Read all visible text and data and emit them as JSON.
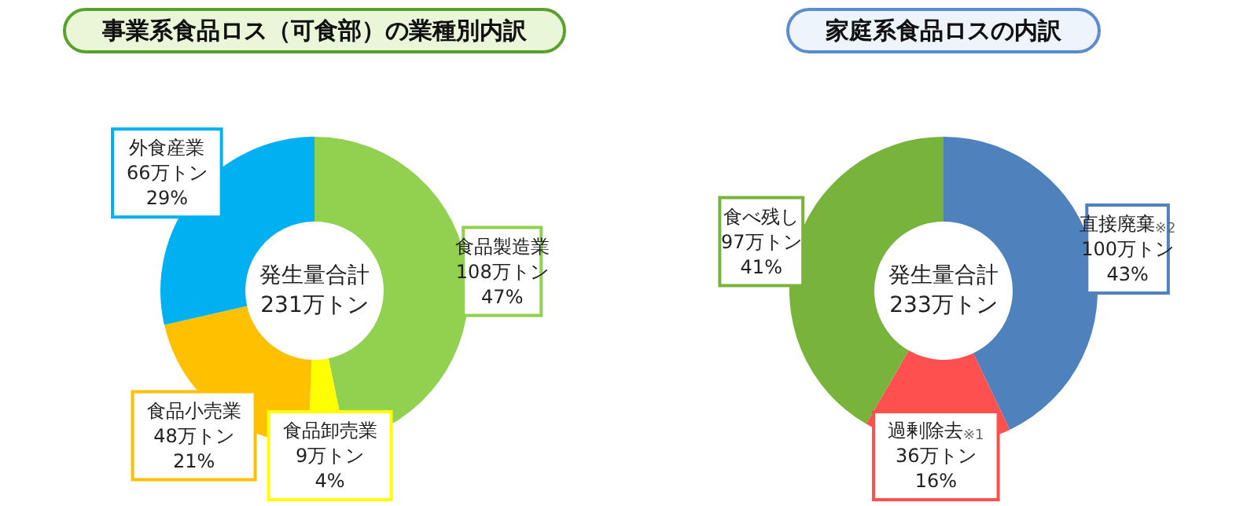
{
  "chart_data": [
    {
      "type": "donut",
      "title": "事業系食品ロス（可食部）の業種別内訳",
      "categories": [
        "食品製造業",
        "食品卸売業",
        "食品小売業",
        "外食産業"
      ],
      "values": [
        108,
        9,
        48,
        66
      ],
      "value_labels": [
        "108万トン\n47%",
        "9万トン\n4%",
        "48万トン\n21%",
        "66万トン\n29%"
      ],
      "colors": [
        "#92d050",
        "#ffff00",
        "#ffc000",
        "#00b0f0"
      ],
      "annotations": [
        "発生量合計",
        "231万トン"
      ],
      "legend": false
    },
    {
      "type": "donut",
      "title": "家庭系食品ロスの内訳",
      "categories": [
        "直接廃棄$^{※2}$",
        "過剰除去$^{※1}$",
        "食べ残し"
      ],
      "values": [
        100,
        36,
        97
      ],
      "value_labels": [
        "100万トン\n43%",
        "36万トン\n16%",
        "97万トン\n41%"
      ],
      "colors": [
        "#4f81bd",
        "#ff5050",
        "#78b43c"
      ],
      "annotations": [
        "発生量合計",
        "233万トン"
      ],
      "legend": false
    }
  ]
}
